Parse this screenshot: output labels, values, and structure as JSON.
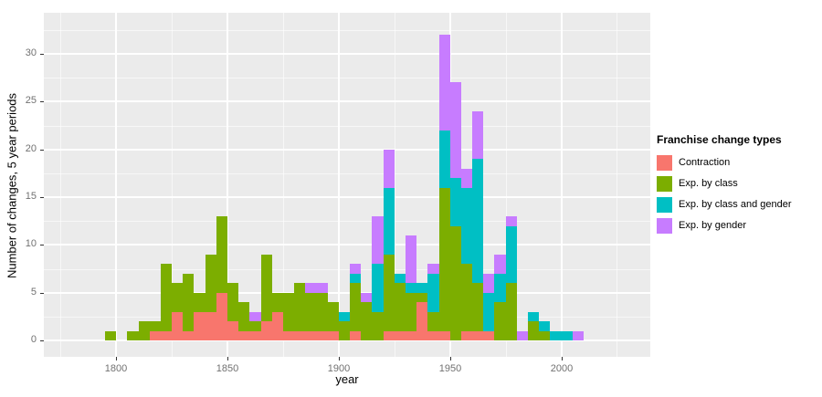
{
  "chart_data": {
    "type": "bar",
    "stacked": true,
    "xlabel": "year",
    "ylabel": "Number of changes, 5 year periods",
    "panel_background": "#EBEBEB",
    "grid_color": "#FFFFFF",
    "tick_color": "#333333",
    "x_domain": [
      1767.5,
      2040
    ],
    "y_domain": [
      -1.7,
      34.3
    ],
    "x_major_ticks": [
      1800,
      1850,
      1900,
      1950,
      2000
    ],
    "x_minor_ticks": [
      1775,
      1825,
      1875,
      1925,
      1975,
      2025
    ],
    "y_major_ticks": [
      0,
      5,
      10,
      15,
      20,
      25,
      30
    ],
    "y_minor_ticks": [
      2.5,
      7.5,
      12.5,
      17.5,
      22.5,
      27.5,
      32.5
    ],
    "bin_width": 5,
    "series": [
      {
        "name": "Contraction",
        "color": "#F8766D"
      },
      {
        "name": "Exp. by class",
        "color": "#7CAE00"
      },
      {
        "name": "Exp. by class and gender",
        "color": "#00BFC4"
      },
      {
        "name": "Exp. by gender",
        "color": "#C77CFF"
      }
    ],
    "bins": [
      {
        "start": 1795,
        "counts": [
          0,
          1,
          0,
          0
        ]
      },
      {
        "start": 1805,
        "counts": [
          0,
          1,
          0,
          0
        ]
      },
      {
        "start": 1810,
        "counts": [
          0,
          2,
          0,
          0
        ]
      },
      {
        "start": 1815,
        "counts": [
          1,
          1,
          0,
          0
        ]
      },
      {
        "start": 1820,
        "counts": [
          1,
          7,
          0,
          0
        ]
      },
      {
        "start": 1825,
        "counts": [
          3,
          3,
          0,
          0
        ]
      },
      {
        "start": 1830,
        "counts": [
          1,
          6,
          0,
          0
        ]
      },
      {
        "start": 1835,
        "counts": [
          3,
          2,
          0,
          0
        ]
      },
      {
        "start": 1840,
        "counts": [
          3,
          6,
          0,
          0
        ]
      },
      {
        "start": 1845,
        "counts": [
          5,
          8,
          0,
          0
        ]
      },
      {
        "start": 1850,
        "counts": [
          2,
          4,
          0,
          0
        ]
      },
      {
        "start": 1855,
        "counts": [
          1,
          3,
          0,
          0
        ]
      },
      {
        "start": 1860,
        "counts": [
          1,
          1,
          0,
          1
        ]
      },
      {
        "start": 1865,
        "counts": [
          2,
          7,
          0,
          0
        ]
      },
      {
        "start": 1870,
        "counts": [
          3,
          2,
          0,
          0
        ]
      },
      {
        "start": 1875,
        "counts": [
          1,
          4,
          0,
          0
        ]
      },
      {
        "start": 1880,
        "counts": [
          1,
          5,
          0,
          0
        ]
      },
      {
        "start": 1885,
        "counts": [
          1,
          4,
          0,
          1
        ]
      },
      {
        "start": 1890,
        "counts": [
          1,
          4,
          0,
          1
        ]
      },
      {
        "start": 1895,
        "counts": [
          1,
          3,
          0,
          0
        ]
      },
      {
        "start": 1900,
        "counts": [
          0,
          2,
          1,
          0
        ]
      },
      {
        "start": 1905,
        "counts": [
          1,
          5,
          1,
          1
        ]
      },
      {
        "start": 1910,
        "counts": [
          0,
          4,
          0,
          1
        ]
      },
      {
        "start": 1915,
        "counts": [
          0,
          3,
          5,
          5
        ]
      },
      {
        "start": 1920,
        "counts": [
          1,
          8,
          7,
          4
        ]
      },
      {
        "start": 1925,
        "counts": [
          1,
          5,
          1,
          0
        ]
      },
      {
        "start": 1930,
        "counts": [
          1,
          4,
          1,
          5
        ]
      },
      {
        "start": 1935,
        "counts": [
          4,
          1,
          1,
          0
        ]
      },
      {
        "start": 1940,
        "counts": [
          1,
          2,
          4,
          1
        ]
      },
      {
        "start": 1945,
        "counts": [
          1,
          15,
          6,
          10
        ]
      },
      {
        "start": 1950,
        "counts": [
          0,
          12,
          5,
          10
        ]
      },
      {
        "start": 1955,
        "counts": [
          1,
          7,
          8,
          2
        ]
      },
      {
        "start": 1960,
        "counts": [
          1,
          5,
          13,
          5
        ]
      },
      {
        "start": 1965,
        "counts": [
          1,
          0,
          4,
          2
        ]
      },
      {
        "start": 1970,
        "counts": [
          0,
          4,
          3,
          2
        ]
      },
      {
        "start": 1975,
        "counts": [
          0,
          6,
          6,
          1
        ]
      },
      {
        "start": 1980,
        "counts": [
          0,
          0,
          0,
          1
        ]
      },
      {
        "start": 1985,
        "counts": [
          0,
          2,
          1,
          0
        ]
      },
      {
        "start": 1990,
        "counts": [
          0,
          1,
          1,
          0
        ]
      },
      {
        "start": 1995,
        "counts": [
          0,
          0,
          1,
          0
        ]
      },
      {
        "start": 2000,
        "counts": [
          0,
          0,
          1,
          0
        ]
      },
      {
        "start": 2005,
        "counts": [
          0,
          0,
          0,
          1
        ]
      }
    ],
    "legend": {
      "title": "Franchise change types",
      "position": "right"
    }
  }
}
